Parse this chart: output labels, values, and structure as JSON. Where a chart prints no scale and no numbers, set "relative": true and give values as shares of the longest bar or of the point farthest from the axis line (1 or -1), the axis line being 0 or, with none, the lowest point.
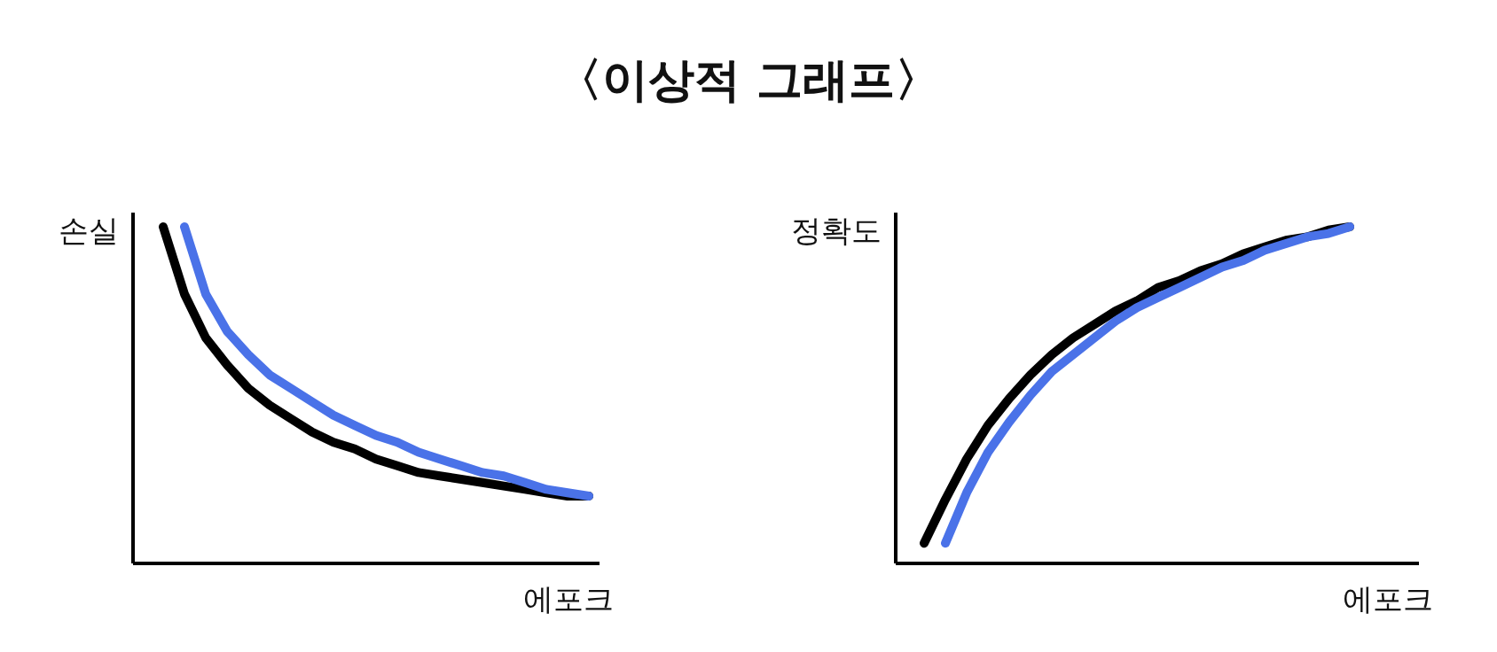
{
  "chart_data": [
    {
      "type": "line",
      "title": "〈이상적 그래프〉",
      "ylabel": "손실",
      "xlabel": "에포크",
      "relative": true,
      "categories": [
        null,
        null,
        null,
        null,
        null,
        null,
        null,
        null,
        null,
        null,
        null,
        null,
        null,
        null,
        null,
        null,
        null,
        null,
        null,
        null,
        null
      ],
      "series": [
        {
          "color": "#000000",
          "values": [
            1,
            0.8,
            0.67,
            0.59,
            0.52,
            0.47,
            0.43,
            0.39,
            0.36,
            0.34,
            0.31,
            0.29,
            0.27,
            0.26,
            0.25,
            0.24,
            0.23,
            0.22,
            0.21,
            0.2,
            0.2
          ]
        },
        {
          "color": "#4a72e8",
          "values": [
            null,
            1,
            0.8,
            0.69,
            0.62,
            0.56,
            0.52,
            0.48,
            0.44,
            0.41,
            0.38,
            0.36,
            0.33,
            0.31,
            0.29,
            0.27,
            0.26,
            0.24,
            0.22,
            0.21,
            0.2
          ]
        }
      ]
    },
    {
      "type": "line",
      "ylabel": "정확도",
      "xlabel": "에포크",
      "relative": true,
      "categories": [
        null,
        null,
        null,
        null,
        null,
        null,
        null,
        null,
        null,
        null,
        null,
        null,
        null,
        null,
        null,
        null,
        null,
        null,
        null,
        null,
        null
      ],
      "series": [
        {
          "color": "#000000",
          "values": [
            0.06,
            0.19,
            0.31,
            0.41,
            0.49,
            0.56,
            0.62,
            0.67,
            0.71,
            0.75,
            0.78,
            0.82,
            0.84,
            0.87,
            0.89,
            0.92,
            0.94,
            0.96,
            0.97,
            0.99,
            1
          ]
        },
        {
          "color": "#4a72e8",
          "values": [
            null,
            0.06,
            0.21,
            0.33,
            0.42,
            0.5,
            0.57,
            0.62,
            0.67,
            0.72,
            0.76,
            0.79,
            0.82,
            0.85,
            0.88,
            0.9,
            0.93,
            0.95,
            0.97,
            0.98,
            1
          ]
        }
      ]
    }
  ]
}
